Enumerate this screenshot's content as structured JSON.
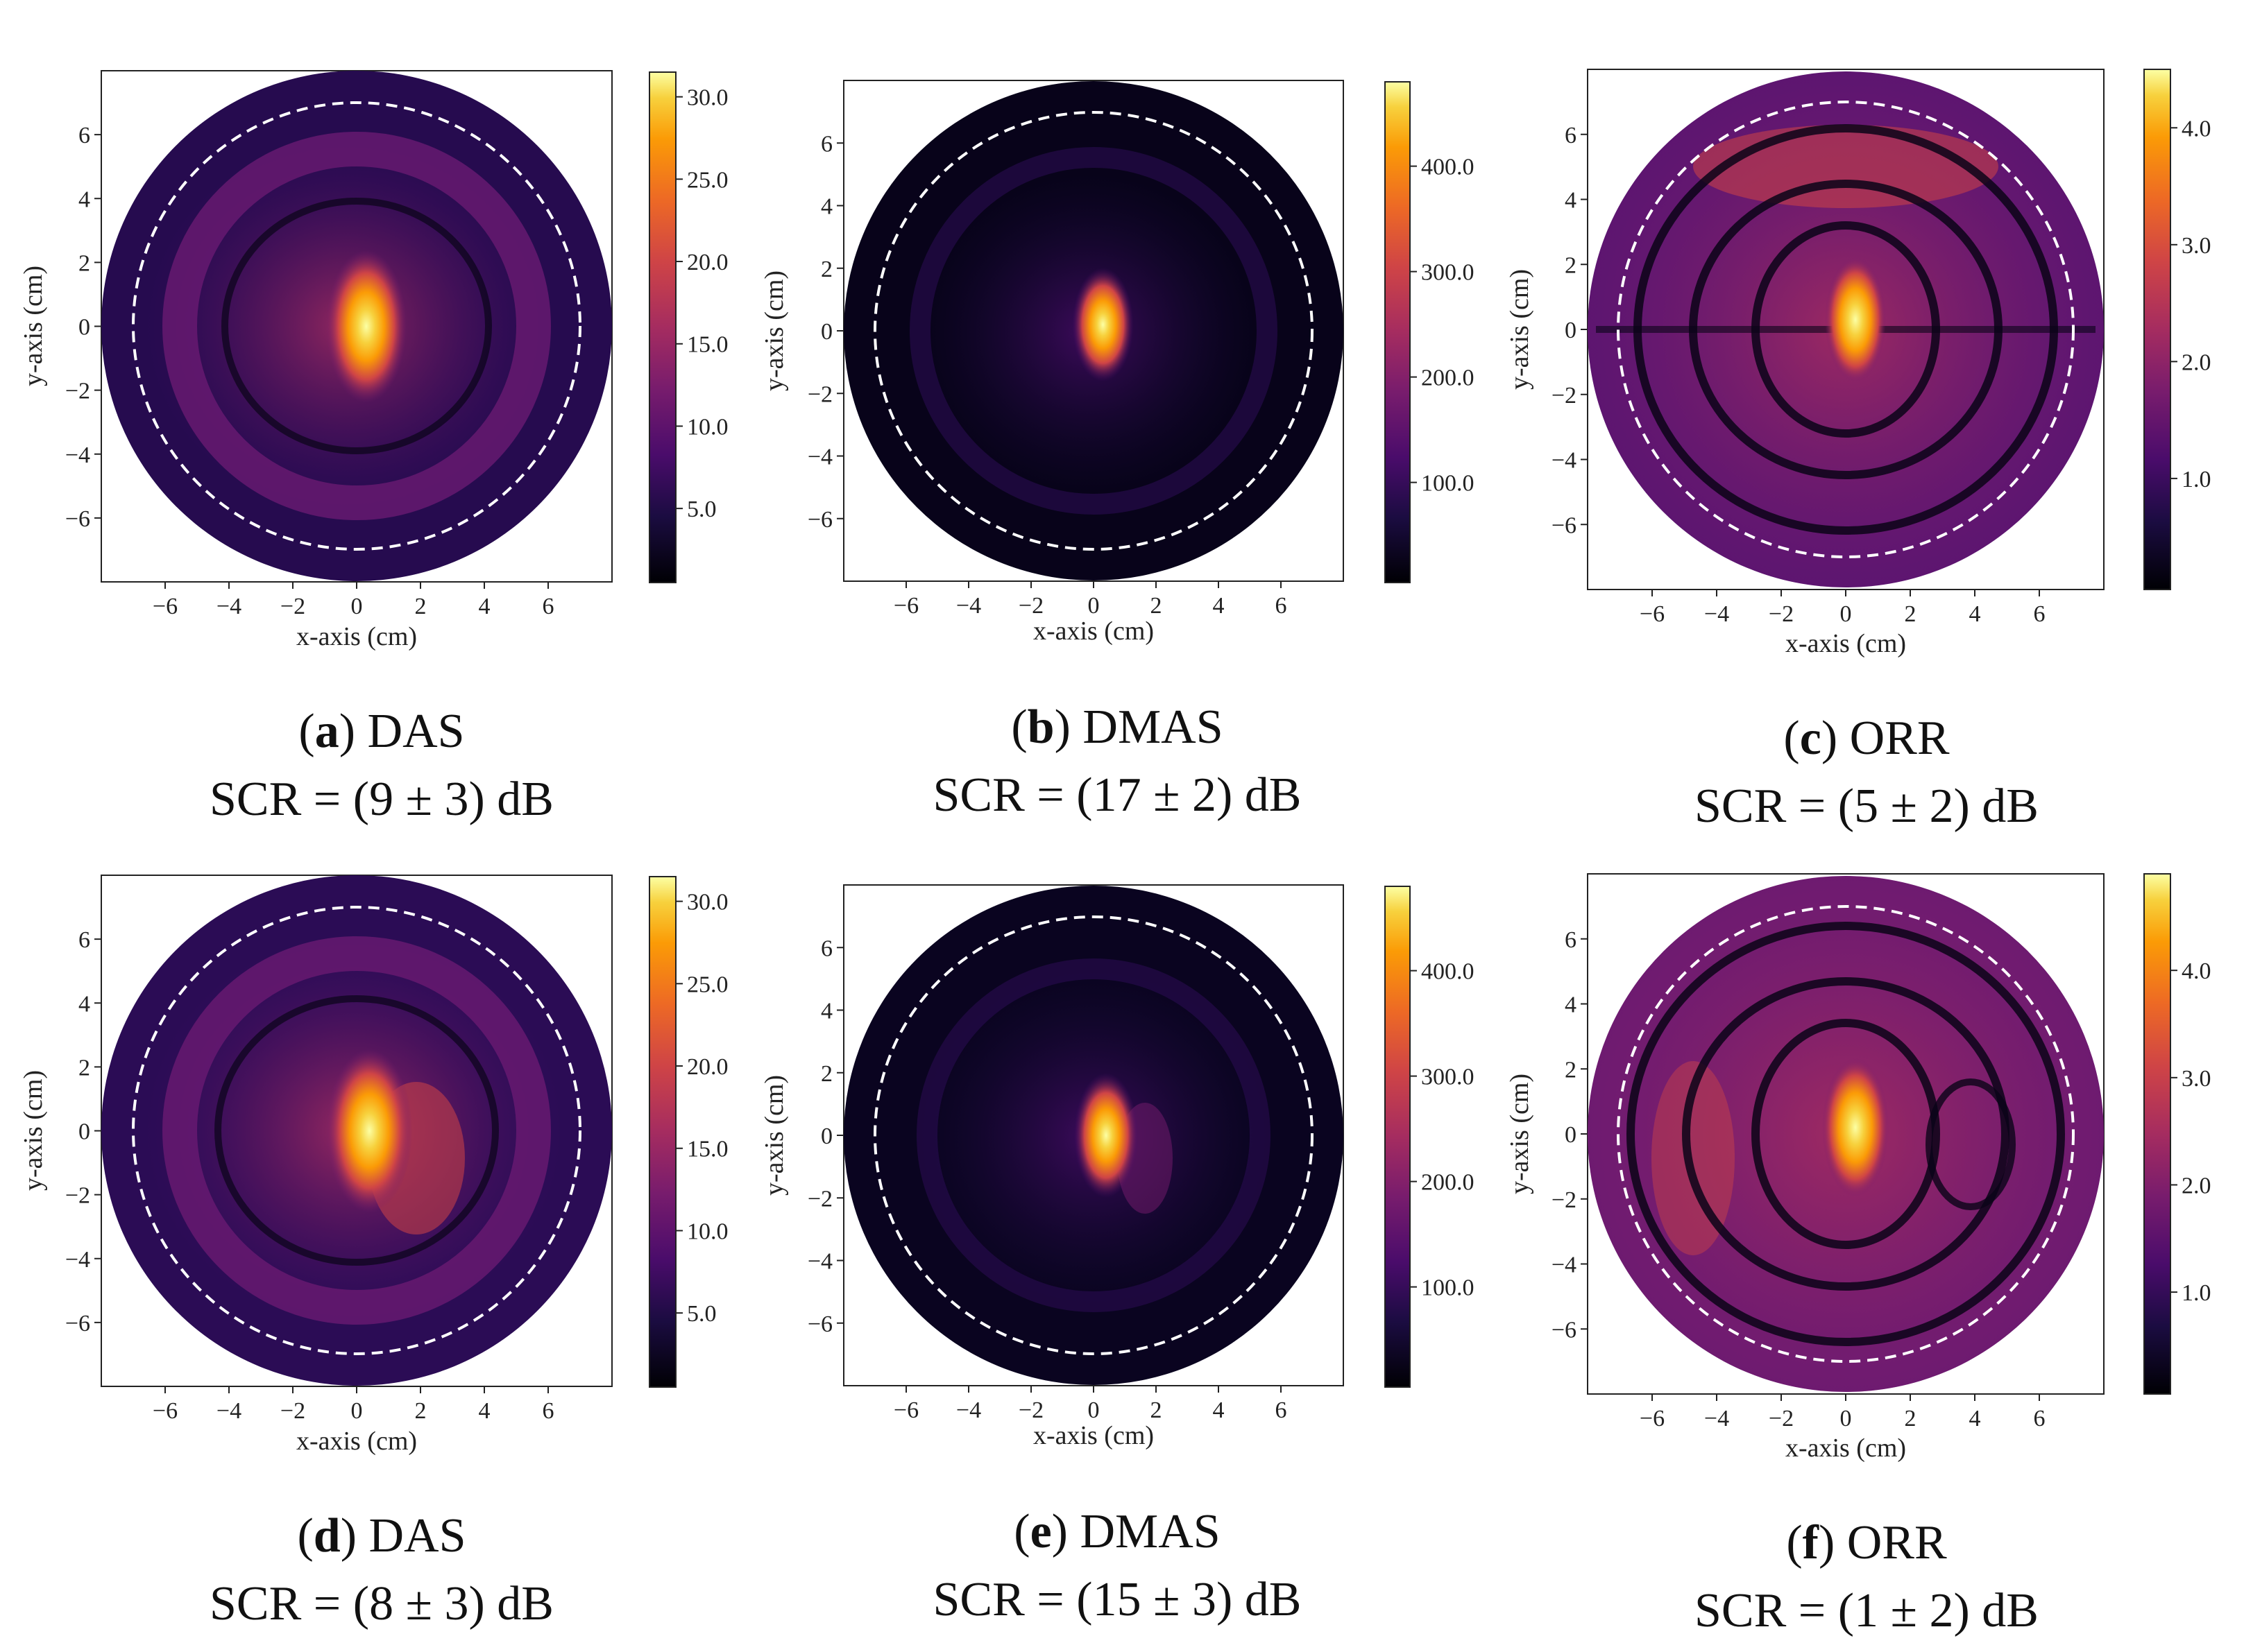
{
  "figure": {
    "colormap": [
      "#000004",
      "#1b0c41",
      "#4a0c6b",
      "#781c6d",
      "#a52c60",
      "#cf4446",
      "#ed6925",
      "#fb9b06",
      "#f7d13d",
      "#fcffa4"
    ],
    "ring_color": "#ffffff"
  },
  "chart_data": [
    {
      "id": "a",
      "type": "heatmap",
      "letter": "a",
      "method": "DAS",
      "scr": "SCR = (9 ± 3) dB",
      "xlabel": "x-axis (cm)",
      "ylabel": "y-axis (cm)",
      "xticks": [
        "−6",
        "−4",
        "−2",
        "0",
        "2",
        "4",
        "6"
      ],
      "yticks": [
        "6",
        "4",
        "2",
        "0",
        "−2",
        "−4",
        "−6"
      ],
      "xlim": [
        -8,
        8
      ],
      "ylim": [
        -8,
        8
      ],
      "colorbar": {
        "min": 0.5,
        "max": 31.5,
        "ticks": [
          5,
          10,
          15,
          20,
          25,
          30
        ],
        "tick_labels": [
          "5.0",
          "10.0",
          "15.0",
          "20.0",
          "25.0",
          "30.0"
        ]
      },
      "hotspot": {
        "x": 0.3,
        "y": 0.0,
        "peak": 31
      },
      "domain_radius_cm": 8,
      "dashed_circle_radius_cm": 7
    },
    {
      "id": "b",
      "type": "heatmap",
      "letter": "b",
      "method": "DMAS",
      "scr": "SCR = (17 ± 2) dB",
      "xlabel": "x-axis (cm)",
      "ylabel": "y-axis (cm)",
      "xticks": [
        "−6",
        "−4",
        "−2",
        "0",
        "2",
        "4",
        "6"
      ],
      "yticks": [
        "6",
        "4",
        "2",
        "0",
        "−2",
        "−4",
        "−6"
      ],
      "xlim": [
        -8,
        8
      ],
      "ylim": [
        -8,
        8
      ],
      "colorbar": {
        "min": 5,
        "max": 480,
        "ticks": [
          100,
          200,
          300,
          400
        ],
        "tick_labels": [
          "100.0",
          "200.0",
          "300.0",
          "400.0"
        ]
      },
      "hotspot": {
        "x": 0.3,
        "y": 0.2,
        "peak": 470
      },
      "domain_radius_cm": 8,
      "dashed_circle_radius_cm": 7
    },
    {
      "id": "c",
      "type": "heatmap",
      "letter": "c",
      "method": "ORR",
      "scr": "SCR = (5 ± 2) dB",
      "xlabel": "x-axis (cm)",
      "ylabel": "y-axis (cm)",
      "xticks": [
        "−6",
        "−4",
        "−2",
        "0",
        "2",
        "4",
        "6"
      ],
      "yticks": [
        "6",
        "4",
        "2",
        "0",
        "−2",
        "−4",
        "−6"
      ],
      "xlim": [
        -8,
        8
      ],
      "ylim": [
        -8,
        8
      ],
      "colorbar": {
        "min": 0.05,
        "max": 4.5,
        "ticks": [
          1,
          2,
          3,
          4
        ],
        "tick_labels": [
          "1.0",
          "2.0",
          "3.0",
          "4.0"
        ]
      },
      "hotspot": {
        "x": 0.3,
        "y": 0.3,
        "peak": 4.4
      },
      "domain_radius_cm": 8,
      "dashed_circle_radius_cm": 7
    },
    {
      "id": "d",
      "type": "heatmap",
      "letter": "d",
      "method": "DAS",
      "scr": "SCR = (8 ± 3) dB",
      "xlabel": "x-axis (cm)",
      "ylabel": "y-axis (cm)",
      "xticks": [
        "−6",
        "−4",
        "−2",
        "0",
        "2",
        "4",
        "6"
      ],
      "yticks": [
        "6",
        "4",
        "2",
        "0",
        "−2",
        "−4",
        "−6"
      ],
      "xlim": [
        -8,
        8
      ],
      "ylim": [
        -8,
        8
      ],
      "colorbar": {
        "min": 0.5,
        "max": 31.5,
        "ticks": [
          5,
          10,
          15,
          20,
          25,
          30
        ],
        "tick_labels": [
          "5.0",
          "10.0",
          "15.0",
          "20.0",
          "25.0",
          "30.0"
        ]
      },
      "hotspot": {
        "x": 0.4,
        "y": 0.0,
        "peak": 31
      },
      "domain_radius_cm": 8,
      "dashed_circle_radius_cm": 7
    },
    {
      "id": "e",
      "type": "heatmap",
      "letter": "e",
      "method": "DMAS",
      "scr": "SCR = (15 ± 3) dB",
      "xlabel": "x-axis (cm)",
      "ylabel": "y-axis (cm)",
      "xticks": [
        "−6",
        "−4",
        "−2",
        "0",
        "2",
        "4",
        "6"
      ],
      "yticks": [
        "6",
        "4",
        "2",
        "0",
        "−2",
        "−4",
        "−6"
      ],
      "xlim": [
        -8,
        8
      ],
      "ylim": [
        -8,
        8
      ],
      "colorbar": {
        "min": 5,
        "max": 480,
        "ticks": [
          100,
          200,
          300,
          400
        ],
        "tick_labels": [
          "100.0",
          "200.0",
          "300.0",
          "400.0"
        ]
      },
      "hotspot": {
        "x": 0.4,
        "y": 0.0,
        "peak": 470
      },
      "domain_radius_cm": 8,
      "dashed_circle_radius_cm": 7
    },
    {
      "id": "f",
      "type": "heatmap",
      "letter": "f",
      "method": "ORR",
      "scr": "SCR = (1 ± 2) dB",
      "xlabel": "x-axis (cm)",
      "ylabel": "y-axis (cm)",
      "xticks": [
        "−6",
        "−4",
        "−2",
        "0",
        "2",
        "4",
        "6"
      ],
      "yticks": [
        "6",
        "4",
        "2",
        "0",
        "−2",
        "−4",
        "−6"
      ],
      "xlim": [
        -8,
        8
      ],
      "ylim": [
        -8,
        8
      ],
      "colorbar": {
        "min": 0.05,
        "max": 4.9,
        "ticks": [
          1,
          2,
          3,
          4
        ],
        "tick_labels": [
          "1.0",
          "2.0",
          "3.0",
          "4.0"
        ]
      },
      "hotspot": {
        "x": 0.3,
        "y": 0.2,
        "peak": 4.6
      },
      "domain_radius_cm": 8,
      "dashed_circle_radius_cm": 7
    }
  ]
}
